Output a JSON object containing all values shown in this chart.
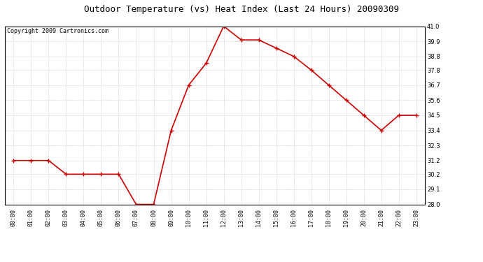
{
  "title": "Outdoor Temperature (vs) Heat Index (Last 24 Hours) 20090309",
  "copyright": "Copyright 2009 Cartronics.com",
  "x_labels": [
    "00:00",
    "01:00",
    "02:00",
    "03:00",
    "04:00",
    "05:00",
    "06:00",
    "07:00",
    "08:00",
    "09:00",
    "10:00",
    "11:00",
    "12:00",
    "13:00",
    "14:00",
    "15:00",
    "16:00",
    "17:00",
    "18:00",
    "19:00",
    "20:00",
    "21:00",
    "22:00",
    "23:00"
  ],
  "y_values": [
    31.2,
    31.2,
    31.2,
    30.2,
    30.2,
    30.2,
    30.2,
    28.0,
    28.0,
    33.4,
    36.7,
    38.3,
    41.0,
    40.0,
    40.0,
    39.4,
    38.8,
    37.8,
    36.7,
    35.6,
    34.5,
    33.4,
    34.5,
    34.5
  ],
  "line_color": "#cc0000",
  "marker": "+",
  "marker_size": 4,
  "line_width": 1.2,
  "ylim": [
    28.0,
    41.0
  ],
  "yticks": [
    28.0,
    29.1,
    30.2,
    31.2,
    32.3,
    33.4,
    34.5,
    35.6,
    36.7,
    37.8,
    38.8,
    39.9,
    41.0
  ],
  "bg_color": "#ffffff",
  "grid_color": "#cccccc",
  "title_fontsize": 9,
  "copyright_fontsize": 6,
  "tick_fontsize": 6,
  "fig_width": 6.9,
  "fig_height": 3.75,
  "dpi": 100
}
